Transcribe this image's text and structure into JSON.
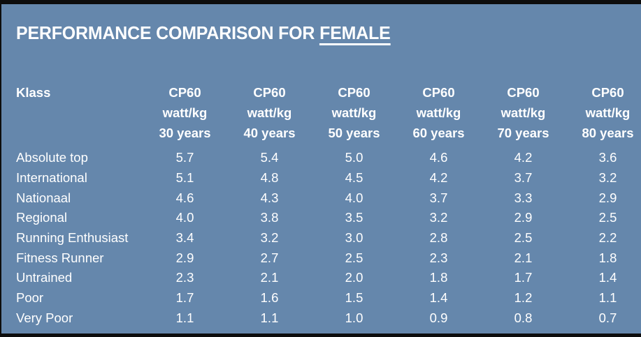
{
  "frame": {
    "background_color": "#6587ac",
    "bar_color": "#0d0d0d",
    "text_color": "#ffffff"
  },
  "title": {
    "prefix": "PERFORMANCE COMPARISON FOR",
    "emphasis": "FEMALE"
  },
  "table": {
    "klass_header": "Klass",
    "columns": [
      {
        "metric": "CP60",
        "unit": "watt/kg",
        "age": "30 years"
      },
      {
        "metric": "CP60",
        "unit": "watt/kg",
        "age": "40 years"
      },
      {
        "metric": "CP60",
        "unit": "watt/kg",
        "age": "50 years"
      },
      {
        "metric": "CP60",
        "unit": "watt/kg",
        "age": "60 years"
      },
      {
        "metric": "CP60",
        "unit": "watt/kg",
        "age": "70 years"
      },
      {
        "metric": "CP60",
        "unit": "watt/kg",
        "age": "80 years"
      }
    ],
    "rows": [
      {
        "label": "Absolute top",
        "values": [
          "5.7",
          "5.4",
          "5.0",
          "4.6",
          "4.2",
          "3.6"
        ]
      },
      {
        "label": "International",
        "values": [
          "5.1",
          "4.8",
          "4.5",
          "4.2",
          "3.7",
          "3.2"
        ]
      },
      {
        "label": "Nationaal",
        "values": [
          "4.6",
          "4.3",
          "4.0",
          "3.7",
          "3.3",
          "2.9"
        ]
      },
      {
        "label": "Regional",
        "values": [
          "4.0",
          "3.8",
          "3.5",
          "3.2",
          "2.9",
          "2.5"
        ]
      },
      {
        "label": "Running Enthusiast",
        "values": [
          "3.4",
          "3.2",
          "3.0",
          "2.8",
          "2.5",
          "2.2"
        ]
      },
      {
        "label": "Fitness Runner",
        "values": [
          "2.9",
          "2.7",
          "2.5",
          "2.3",
          "2.1",
          "1.8"
        ]
      },
      {
        "label": "Untrained",
        "values": [
          "2.3",
          "2.1",
          "2.0",
          "1.8",
          "1.7",
          "1.4"
        ]
      },
      {
        "label": "Poor",
        "values": [
          "1.7",
          "1.6",
          "1.5",
          "1.4",
          "1.2",
          "1.1"
        ]
      },
      {
        "label": "Very Poor",
        "values": [
          "1.1",
          "1.1",
          "1.0",
          "0.9",
          "0.8",
          "0.7"
        ]
      }
    ]
  },
  "chart_data": {
    "type": "table",
    "title": "PERFORMANCE COMPARISON FOR FEMALE",
    "columns": [
      "Klass",
      "CP60 watt/kg 30 years",
      "CP60 watt/kg 40 years",
      "CP60 watt/kg 50 years",
      "CP60 watt/kg 60 years",
      "CP60 watt/kg 70 years",
      "CP60 watt/kg 80 years"
    ],
    "rows": [
      [
        "Absolute top",
        5.7,
        5.4,
        5.0,
        4.6,
        4.2,
        3.6
      ],
      [
        "International",
        5.1,
        4.8,
        4.5,
        4.2,
        3.7,
        3.2
      ],
      [
        "Nationaal",
        4.6,
        4.3,
        4.0,
        3.7,
        3.3,
        2.9
      ],
      [
        "Regional",
        4.0,
        3.8,
        3.5,
        3.2,
        2.9,
        2.5
      ],
      [
        "Running Enthusiast",
        3.4,
        3.2,
        3.0,
        2.8,
        2.5,
        2.2
      ],
      [
        "Fitness Runner",
        2.9,
        2.7,
        2.5,
        2.3,
        2.1,
        1.8
      ],
      [
        "Untrained",
        2.3,
        2.1,
        2.0,
        1.8,
        1.7,
        1.4
      ],
      [
        "Poor",
        1.7,
        1.6,
        1.5,
        1.4,
        1.2,
        1.1
      ],
      [
        "Very Poor",
        1.1,
        1.1,
        1.0,
        0.9,
        0.8,
        0.7
      ]
    ]
  }
}
